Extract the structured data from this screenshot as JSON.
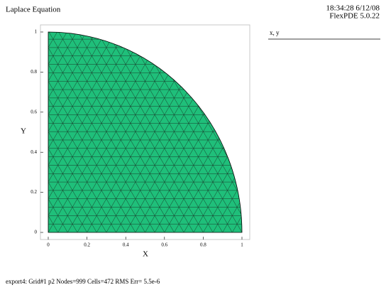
{
  "chart_data": {
    "type": "mesh",
    "title": "Laplace Equation",
    "timestamp": "18:34:28 6/12/08",
    "version": "FlexPDE 5.0.22",
    "legend_label": "x, y",
    "xlabel": "X",
    "ylabel": "Y",
    "xlim": [
      0,
      1
    ],
    "ylim": [
      0,
      1
    ],
    "xticks": [
      0,
      0.2,
      0.4,
      0.6,
      0.8,
      1
    ],
    "yticks": [
      0,
      0.2,
      0.4,
      0.6,
      0.8,
      1
    ],
    "color": "#1fbf7a",
    "footer": "export4:  Grid#1  p2  Nodes=999 Cells=472 RMS Err= 5.5e-6"
  }
}
